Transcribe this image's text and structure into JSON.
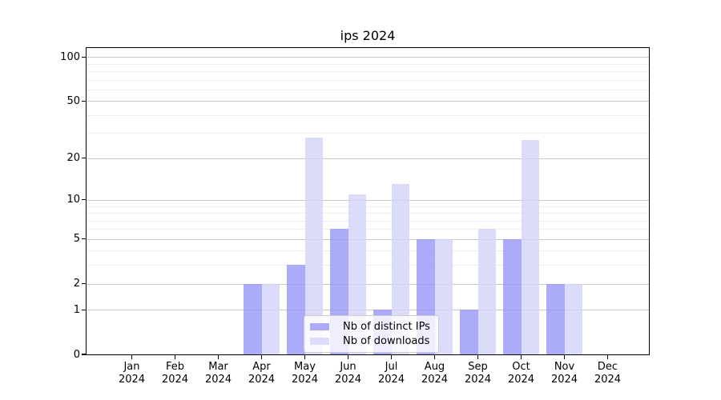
{
  "chart_data": {
    "type": "bar",
    "title": "ips 2024",
    "categories": [
      {
        "month": "Jan",
        "year": "2024"
      },
      {
        "month": "Feb",
        "year": "2024"
      },
      {
        "month": "Mar",
        "year": "2024"
      },
      {
        "month": "Apr",
        "year": "2024"
      },
      {
        "month": "May",
        "year": "2024"
      },
      {
        "month": "Jun",
        "year": "2024"
      },
      {
        "month": "Jul",
        "year": "2024"
      },
      {
        "month": "Aug",
        "year": "2024"
      },
      {
        "month": "Sep",
        "year": "2024"
      },
      {
        "month": "Oct",
        "year": "2024"
      },
      {
        "month": "Nov",
        "year": "2024"
      },
      {
        "month": "Dec",
        "year": "2024"
      }
    ],
    "series": [
      {
        "name": "Nb of distinct IPs",
        "color": "#ababfa",
        "values": [
          0,
          0,
          0,
          2,
          3,
          6,
          1,
          5,
          1,
          5,
          2,
          0
        ]
      },
      {
        "name": "Nb of downloads",
        "color": "#dbdbfa",
        "values": [
          0,
          0,
          0,
          2,
          28,
          11,
          13,
          5,
          6,
          27,
          2,
          0
        ]
      }
    ],
    "y_axis": {
      "scale": "log1p",
      "ticks": [
        0,
        1,
        2,
        5,
        10,
        20,
        50,
        100
      ],
      "minor_gridlines": [
        3,
        4,
        6,
        7,
        8,
        9,
        30,
        40,
        60,
        70,
        80,
        90
      ],
      "ylim": [
        0,
        115
      ]
    },
    "x_axis": {
      "tick_label_lines": 2
    },
    "legend": {
      "position": "lower-center"
    },
    "colors": {
      "major_grid": "#c9c9c9",
      "minor_grid": "#ededed",
      "axis": "#000000",
      "background": "#ffffff",
      "legend_border": "#cccccc",
      "legend_background": "rgba(255,255,255,0.8)"
    },
    "grid": "on"
  }
}
